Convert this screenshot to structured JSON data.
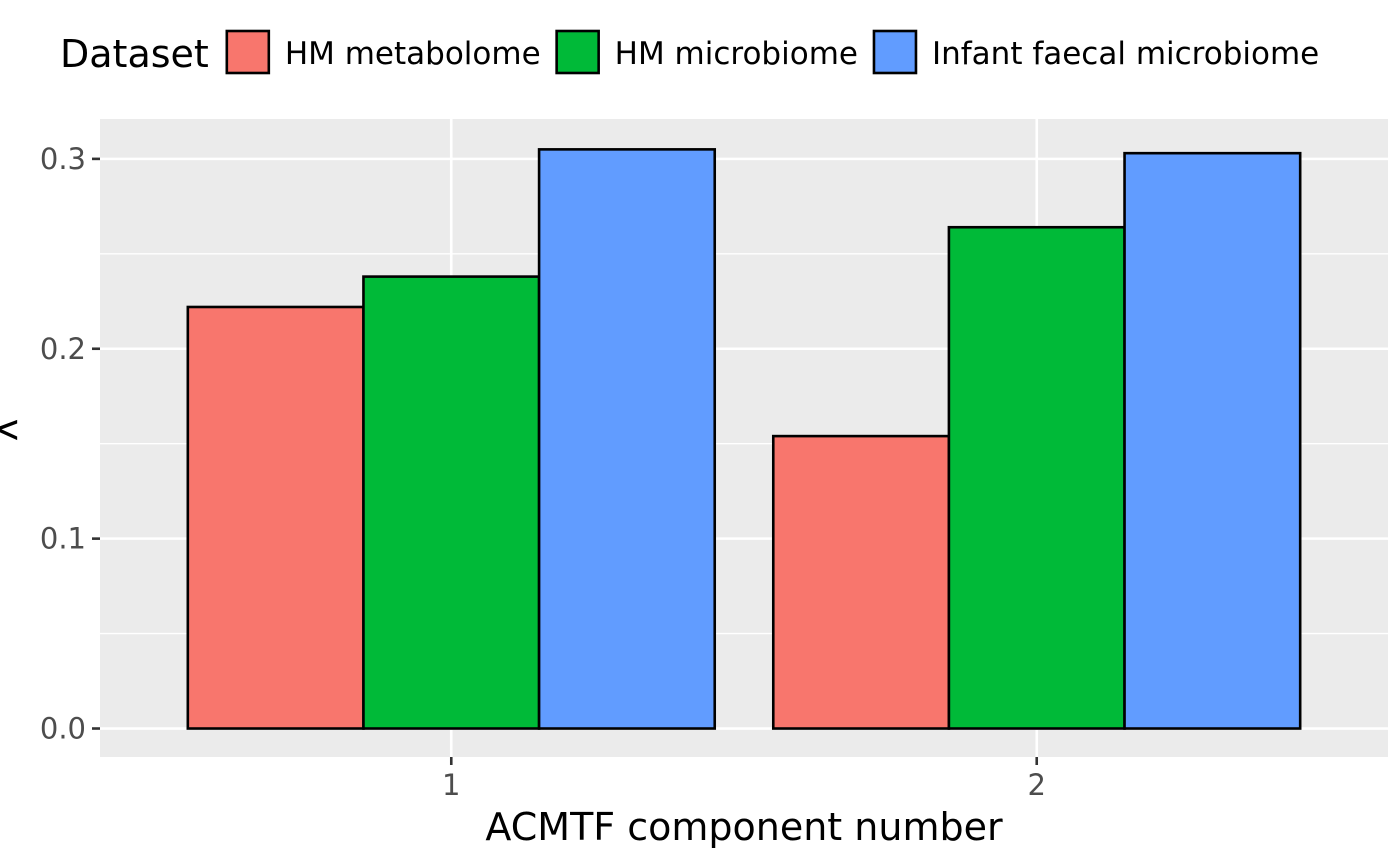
{
  "chart_data": {
    "type": "bar",
    "title": "",
    "xlabel": "ACMTF component number",
    "ylabel": "λ",
    "categories": [
      "1",
      "2"
    ],
    "series": [
      {
        "name": "HM metabolome",
        "values": [
          0.222,
          0.154
        ],
        "color": "#F8766D"
      },
      {
        "name": "HM microbiome",
        "values": [
          0.238,
          0.264
        ],
        "color": "#00BA38"
      },
      {
        "name": "Infant faecal microbiome",
        "values": [
          0.305,
          0.303
        ],
        "color": "#619CFF"
      }
    ],
    "ylim": [
      -0.015,
      0.321
    ],
    "yticks": [
      0.0,
      0.1,
      0.2,
      0.3
    ],
    "ytick_labels": [
      "0.0",
      "0.1",
      "0.2",
      "0.3"
    ],
    "grid": true,
    "legend": {
      "title": "Dataset",
      "position": "top"
    },
    "colors": {
      "panel": "#EBEBEB",
      "grid": "#FFFFFF",
      "bar_border": "#000000"
    }
  }
}
